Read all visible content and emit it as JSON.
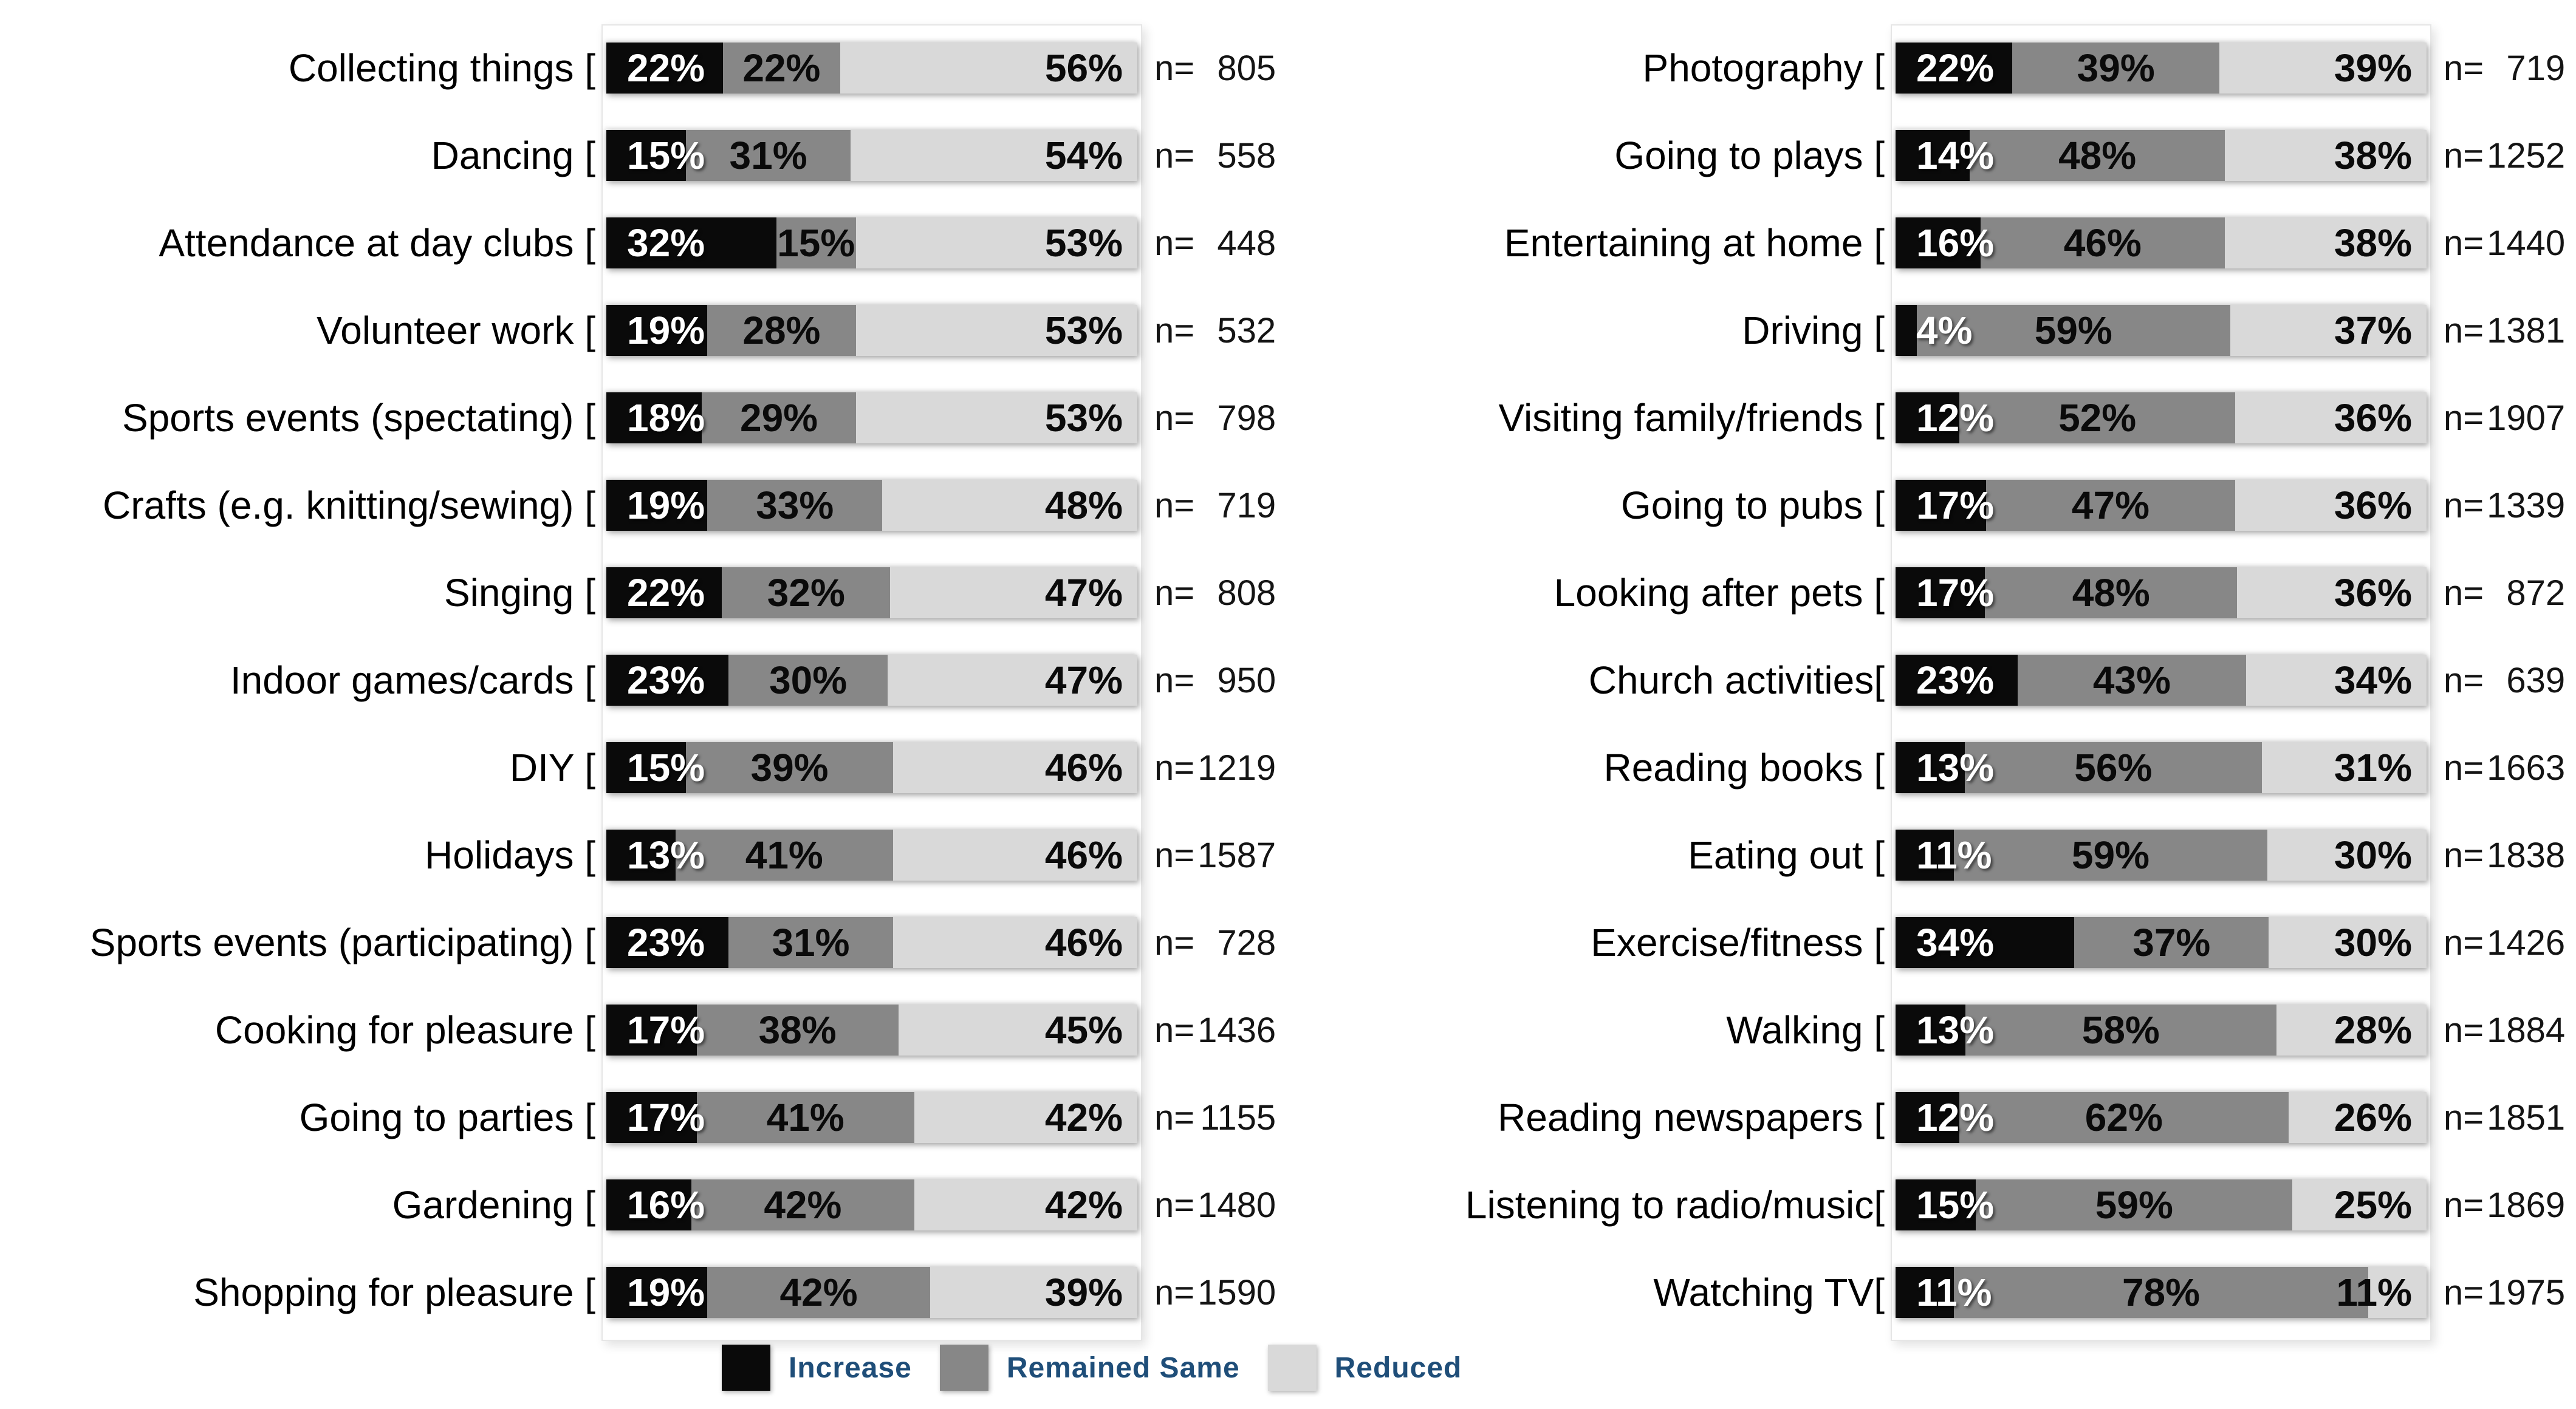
{
  "page": {
    "background": "#ffffff"
  },
  "colors": {
    "increase": "#0a0a0a",
    "remained_same": "#878787",
    "reduced": "#d9d9d9",
    "bar_label_light": "#ffffff",
    "bar_label_dark": "#0a0a0a",
    "legend_text": "#1F4E79"
  },
  "n_prefix": "n=",
  "legend": {
    "items": [
      {
        "label": "Increase",
        "color_key": "increase"
      },
      {
        "label": "Remained Same",
        "color_key": "remained_same"
      },
      {
        "label": "Reduced",
        "color_key": "reduced"
      }
    ]
  },
  "chart_data": {
    "type": "bar",
    "orientation": "horizontal",
    "stacked": true,
    "unit": "%",
    "xlim": [
      0,
      100
    ],
    "grid": false,
    "legend_position": "bottom",
    "series_names": [
      "Increase",
      "Remained Same",
      "Reduced"
    ],
    "columns": [
      {
        "name": "left",
        "rows": [
          {
            "label": "Collecting things [",
            "increase": 22,
            "remained_same": 22,
            "reduced": 56,
            "n": "805"
          },
          {
            "label": "Dancing [",
            "increase": 15,
            "remained_same": 31,
            "reduced": 54,
            "n": "558"
          },
          {
            "label": "Attendance at day clubs [",
            "increase": 32,
            "remained_same": 15,
            "reduced": 53,
            "n": "448"
          },
          {
            "label": "Volunteer work [",
            "increase": 19,
            "remained_same": 28,
            "reduced": 53,
            "n": "532"
          },
          {
            "label": "Sports events (spectating) [",
            "increase": 18,
            "remained_same": 29,
            "reduced": 53,
            "n": "798"
          },
          {
            "label": "Crafts (e.g. knitting/sewing) [",
            "increase": 19,
            "remained_same": 33,
            "reduced": 48,
            "n": "719"
          },
          {
            "label": "Singing [",
            "increase": 22,
            "remained_same": 32,
            "reduced": 47,
            "n": "808"
          },
          {
            "label": "Indoor games/cards [",
            "increase": 23,
            "remained_same": 30,
            "reduced": 47,
            "n": "950"
          },
          {
            "label": "DIY [",
            "increase": 15,
            "remained_same": 39,
            "reduced": 46,
            "n": "1219"
          },
          {
            "label": "Holidays [",
            "increase": 13,
            "remained_same": 41,
            "reduced": 46,
            "n": "1587"
          },
          {
            "label": "Sports events (participating) [",
            "increase": 23,
            "remained_same": 31,
            "reduced": 46,
            "n": "728"
          },
          {
            "label": "Cooking for pleasure [",
            "increase": 17,
            "remained_same": 38,
            "reduced": 45,
            "n": "1436"
          },
          {
            "label": "Going to parties [",
            "increase": 17,
            "remained_same": 41,
            "reduced": 42,
            "n": "1155"
          },
          {
            "label": "Gardening [",
            "increase": 16,
            "remained_same": 42,
            "reduced": 42,
            "n": "1480"
          },
          {
            "label": "Shopping for pleasure [",
            "increase": 19,
            "remained_same": 42,
            "reduced": 39,
            "n": "1590"
          }
        ]
      },
      {
        "name": "right",
        "rows": [
          {
            "label": "Photography [",
            "increase": 22,
            "remained_same": 39,
            "reduced": 39,
            "n": "719"
          },
          {
            "label": "Going to plays [",
            "increase": 14,
            "remained_same": 48,
            "reduced": 38,
            "n": "1252"
          },
          {
            "label": "Entertaining at home [",
            "increase": 16,
            "remained_same": 46,
            "reduced": 38,
            "n": "1440"
          },
          {
            "label": "Driving [",
            "increase": 4,
            "remained_same": 59,
            "reduced": 37,
            "n": "1381"
          },
          {
            "label": "Visiting family/friends [",
            "increase": 12,
            "remained_same": 52,
            "reduced": 36,
            "n": "1907"
          },
          {
            "label": "Going to pubs [",
            "increase": 17,
            "remained_same": 47,
            "reduced": 36,
            "n": "1339"
          },
          {
            "label": "Looking after pets [",
            "increase": 17,
            "remained_same": 48,
            "reduced": 36,
            "n": "872"
          },
          {
            "label": "Church activities[",
            "increase": 23,
            "remained_same": 43,
            "reduced": 34,
            "n": "639"
          },
          {
            "label": "Reading books [",
            "increase": 13,
            "remained_same": 56,
            "reduced": 31,
            "n": "1663"
          },
          {
            "label": "Eating out [",
            "increase": 11,
            "remained_same": 59,
            "reduced": 30,
            "n": "1838"
          },
          {
            "label": "Exercise/fitness [",
            "increase": 34,
            "remained_same": 37,
            "reduced": 30,
            "n": "1426"
          },
          {
            "label": "Walking [",
            "increase": 13,
            "remained_same": 58,
            "reduced": 28,
            "n": "1884"
          },
          {
            "label": "Reading newspapers [",
            "increase": 12,
            "remained_same": 62,
            "reduced": 26,
            "n": "1851"
          },
          {
            "label": "Listening to radio/music[",
            "increase": 15,
            "remained_same": 59,
            "reduced": 25,
            "n": "1869"
          },
          {
            "label": "Watching TV[",
            "increase": 11,
            "remained_same": 78,
            "reduced": 11,
            "n": "1975"
          }
        ]
      }
    ]
  }
}
